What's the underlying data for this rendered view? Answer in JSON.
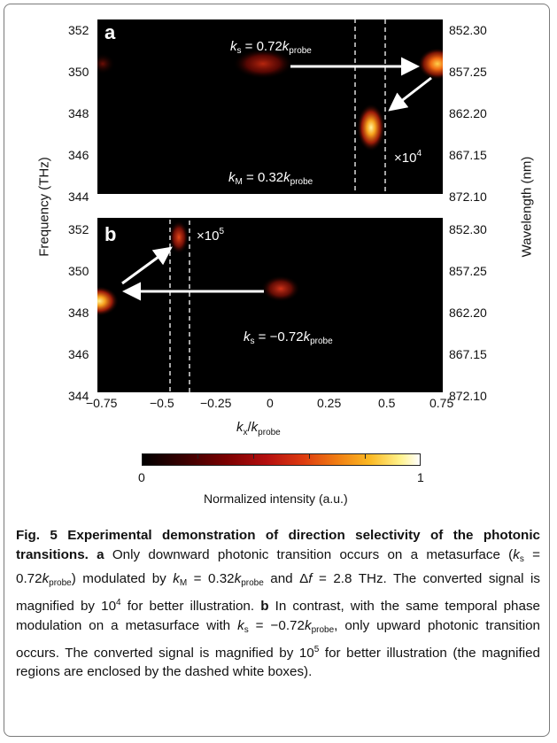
{
  "figure": {
    "panel_a": {
      "label": "a",
      "ks_annotation": {
        "sym": "k",
        "sub": "s",
        "mid": " = 0.72",
        "k2": "k",
        "sub2": "probe"
      },
      "km_annotation": {
        "sym": "k",
        "sub": "M",
        "mid": " = 0.32",
        "k2": "k",
        "sub2": "probe"
      },
      "magnification": {
        "base": "×10",
        "exp": "4"
      }
    },
    "panel_b": {
      "label": "b",
      "ks_annotation": {
        "sym": "k",
        "sub": "s",
        "mid": " = −0.72",
        "k2": "k",
        "sub2": "probe"
      },
      "magnification": {
        "base": "×10",
        "exp": "5"
      }
    },
    "left_axis": {
      "label": "Frequency  (THz)",
      "ticks": [
        "352",
        "350",
        "348",
        "346",
        "344"
      ]
    },
    "right_axis": {
      "label": "Wavelength (nm)",
      "ticks": [
        "852.30",
        "857.25",
        "862.20",
        "867.15",
        "872.10"
      ]
    },
    "x_axis": {
      "label_sym": "k",
      "label_sub": "x",
      "label_div": "/",
      "label_sym2": "k",
      "label_sub2": "probe",
      "ticks": [
        "−0.75",
        "−0.5",
        "−0.25",
        "0",
        "0.25",
        "0.5",
        "0.75"
      ]
    },
    "colorbar": {
      "label": "Normalized intensity (a.u.)",
      "min": "0",
      "max": "1"
    }
  },
  "caption": {
    "fig_num": "Fig. 5",
    "title": " Experimental demonstration of direction selectivity of the photonic transitions.",
    "a": "a",
    "a_t1": " Only downward photonic transition occurs on a metasurface (",
    "a_m1_pre": "k",
    "a_m1_sub": "s",
    "a_m1_post": " = 0.72",
    "a_m1_k": "k",
    "a_m1_ksub": "probe",
    "a_t2": ") modulated by ",
    "a_m2_pre": "k",
    "a_m2_sub": "M",
    "a_m2_post": " = 0.32",
    "a_m2_k": "k",
    "a_m2_ksub": "probe",
    "a_t3": " and Δ",
    "a_f": "f",
    "a_t4": " = 2.8 THz. The converted signal is magnified by 10",
    "a_exp": "4",
    "a_t5": " for better illustration.",
    "b": "b",
    "b_t1": " In contrast, with the same temporal phase modulation on a metasurface with ",
    "b_m_pre": "k",
    "b_m_sub": "s",
    "b_m_post": " = −0.72",
    "b_m_k": "k",
    "b_m_ksub": "probe",
    "b_t2": ", only upward photonic transition occurs. The converted signal is magnified by 10",
    "b_exp": "5",
    "b_t3": " for better illustration (the magnified regions are enclosed by the dashed white boxes)."
  }
}
